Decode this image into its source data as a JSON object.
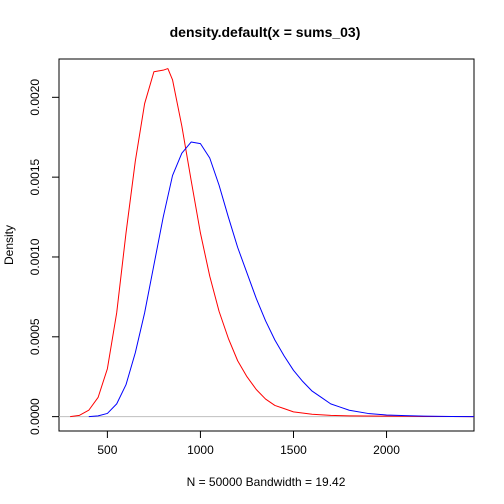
{
  "chart_data": {
    "type": "line",
    "title": "density.default(x = sums_03)",
    "xlabel": "N = 50000   Bandwidth = 19.42",
    "ylabel": "Density",
    "xlim": [
      240,
      2470
    ],
    "ylim": [
      -9e-05,
      0.00224
    ],
    "x_ticks": [
      500,
      1000,
      1500,
      2000
    ],
    "x_tick_labels": [
      "500",
      "1000",
      "1500",
      "2000"
    ],
    "y_ticks": [
      0.0,
      0.0005,
      0.001,
      0.0015,
      0.002
    ],
    "y_tick_labels": [
      "0.0000",
      "0.0005",
      "0.0010",
      "0.0015",
      "0.0020"
    ],
    "grid": false,
    "zero_line": true,
    "series": [
      {
        "color": "#ff0000",
        "points": [
          [
            300,
            0.0
          ],
          [
            350,
            8e-06
          ],
          [
            400,
            4e-05
          ],
          [
            450,
            0.00012
          ],
          [
            500,
            0.0003
          ],
          [
            550,
            0.00065
          ],
          [
            600,
            0.00115
          ],
          [
            650,
            0.0016
          ],
          [
            700,
            0.00196
          ],
          [
            750,
            0.00216
          ],
          [
            800,
            0.00217
          ],
          [
            825,
            0.00218
          ],
          [
            850,
            0.00211
          ],
          [
            900,
            0.00182
          ],
          [
            950,
            0.00148
          ],
          [
            1000,
            0.00115
          ],
          [
            1050,
            0.00088
          ],
          [
            1100,
            0.00066
          ],
          [
            1150,
            0.00049
          ],
          [
            1200,
            0.00035
          ],
          [
            1250,
            0.00025
          ],
          [
            1300,
            0.00017
          ],
          [
            1350,
            0.00011
          ],
          [
            1400,
            7e-05
          ],
          [
            1450,
            5e-05
          ],
          [
            1500,
            3e-05
          ],
          [
            1600,
            1.5e-05
          ],
          [
            1700,
            8e-06
          ],
          [
            1800,
            5e-06
          ],
          [
            1900,
            4e-06
          ],
          [
            2000,
            3e-06
          ],
          [
            2100,
            2e-06
          ],
          [
            2200,
            1e-06
          ],
          [
            2350,
            5e-07
          ],
          [
            2470,
            0.0
          ]
        ]
      },
      {
        "color": "#0000ff",
        "points": [
          [
            400,
            0.0
          ],
          [
            450,
            5e-06
          ],
          [
            500,
            2e-05
          ],
          [
            550,
            8e-05
          ],
          [
            600,
            0.0002
          ],
          [
            650,
            0.0004
          ],
          [
            700,
            0.00065
          ],
          [
            750,
            0.00095
          ],
          [
            800,
            0.00125
          ],
          [
            850,
            0.00151
          ],
          [
            900,
            0.00165
          ],
          [
            950,
            0.00172
          ],
          [
            1000,
            0.00171
          ],
          [
            1050,
            0.00162
          ],
          [
            1100,
            0.00145
          ],
          [
            1150,
            0.00125
          ],
          [
            1200,
            0.00106
          ],
          [
            1250,
            0.0009
          ],
          [
            1300,
            0.00074
          ],
          [
            1350,
            0.0006
          ],
          [
            1400,
            0.00048
          ],
          [
            1450,
            0.00038
          ],
          [
            1500,
            0.00029
          ],
          [
            1550,
            0.00022
          ],
          [
            1600,
            0.00016
          ],
          [
            1650,
            0.00012
          ],
          [
            1700,
            8e-05
          ],
          [
            1750,
            6e-05
          ],
          [
            1800,
            4e-05
          ],
          [
            1900,
            2e-05
          ],
          [
            2000,
            1e-05
          ],
          [
            2100,
            6e-06
          ],
          [
            2200,
            3e-06
          ],
          [
            2350,
            1e-06
          ],
          [
            2470,
            0.0
          ]
        ]
      }
    ]
  }
}
